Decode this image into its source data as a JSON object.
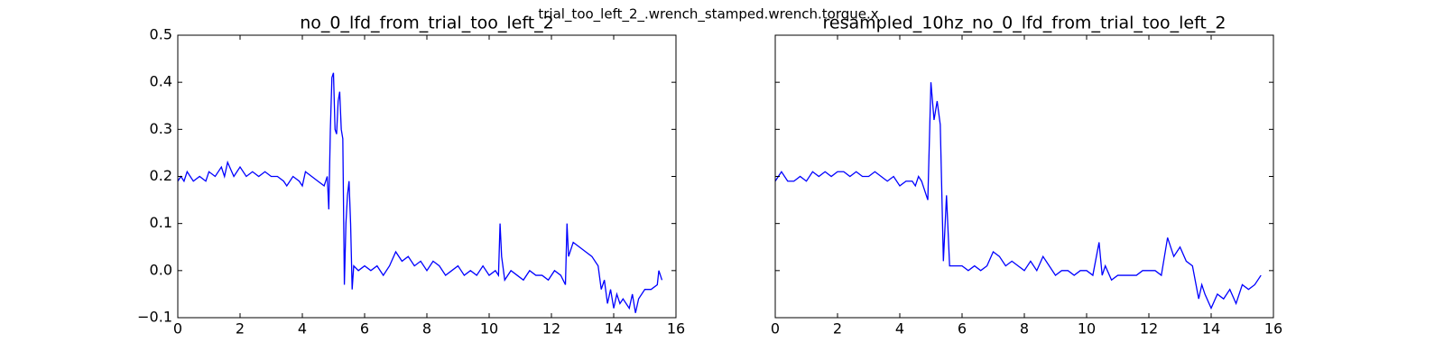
{
  "title": "trial_too_left_2_.wrench_stamped.wrench.torque.x",
  "chart_data": [
    {
      "type": "line",
      "title": "no_0_lfd_from_trial_too_left_2",
      "color": "#0000ff",
      "xlim": [
        0,
        16
      ],
      "xticks": [
        0,
        2,
        4,
        6,
        8,
        10,
        12,
        14,
        16
      ],
      "ylim": [
        -0.1,
        0.5
      ],
      "yticks": [
        {
          "value": -0.1,
          "label": "−0.1"
        },
        {
          "value": 0,
          "label": "0.0"
        },
        0.1,
        0.2,
        0.3,
        0.4,
        0.5
      ],
      "x": [
        0,
        0.1,
        0.2,
        0.3,
        0.5,
        0.7,
        0.9,
        1.0,
        1.2,
        1.4,
        1.5,
        1.6,
        1.8,
        2.0,
        2.2,
        2.4,
        2.6,
        2.8,
        3.0,
        3.2,
        3.4,
        3.5,
        3.7,
        3.9,
        4.0,
        4.1,
        4.3,
        4.5,
        4.7,
        4.8,
        4.85,
        4.9,
        4.95,
        5.0,
        5.05,
        5.1,
        5.15,
        5.2,
        5.25,
        5.3,
        5.35,
        5.4,
        5.45,
        5.5,
        5.55,
        5.6,
        5.65,
        5.8,
        6.0,
        6.2,
        6.4,
        6.6,
        6.8,
        7.0,
        7.2,
        7.4,
        7.6,
        7.8,
        8.0,
        8.2,
        8.4,
        8.6,
        8.8,
        9.0,
        9.2,
        9.4,
        9.6,
        9.8,
        10.0,
        10.2,
        10.3,
        10.35,
        10.4,
        10.5,
        10.7,
        10.9,
        11.1,
        11.3,
        11.5,
        11.7,
        11.9,
        12.1,
        12.3,
        12.45,
        12.5,
        12.55,
        12.7,
        12.9,
        13.1,
        13.3,
        13.5,
        13.6,
        13.7,
        13.8,
        13.9,
        14.0,
        14.1,
        14.2,
        14.3,
        14.5,
        14.6,
        14.7,
        14.8,
        15.0,
        15.2,
        15.4,
        15.45,
        15.5,
        15.55
      ],
      "values": [
        0.19,
        0.2,
        0.19,
        0.21,
        0.19,
        0.2,
        0.19,
        0.21,
        0.2,
        0.22,
        0.2,
        0.23,
        0.2,
        0.22,
        0.2,
        0.21,
        0.2,
        0.21,
        0.2,
        0.2,
        0.19,
        0.18,
        0.2,
        0.19,
        0.18,
        0.21,
        0.2,
        0.19,
        0.18,
        0.2,
        0.13,
        0.3,
        0.41,
        0.42,
        0.3,
        0.29,
        0.36,
        0.38,
        0.3,
        0.28,
        -0.03,
        0.1,
        0.16,
        0.19,
        0.1,
        -0.04,
        0.01,
        0.0,
        0.01,
        0.0,
        0.01,
        -0.01,
        0.01,
        0.04,
        0.02,
        0.03,
        0.01,
        0.02,
        0.0,
        0.02,
        0.01,
        -0.01,
        0.0,
        0.01,
        -0.01,
        0.0,
        -0.01,
        0.01,
        -0.01,
        0.0,
        -0.01,
        0.1,
        0.03,
        -0.02,
        0.0,
        -0.01,
        -0.02,
        0.0,
        -0.01,
        -0.01,
        -0.02,
        0.0,
        -0.01,
        -0.03,
        0.1,
        0.03,
        0.06,
        0.05,
        0.04,
        0.03,
        0.01,
        -0.04,
        -0.02,
        -0.07,
        -0.04,
        -0.08,
        -0.05,
        -0.07,
        -0.06,
        -0.08,
        -0.05,
        -0.09,
        -0.06,
        -0.04,
        -0.04,
        -0.03,
        0.0,
        -0.01,
        -0.02
      ]
    },
    {
      "type": "line",
      "title": "resampled_10hz_no_0_lfd_from_trial_too_left_2",
      "color": "#0000ff",
      "xlim": [
        0,
        16
      ],
      "xticks": [
        0,
        2,
        4,
        6,
        8,
        10,
        12,
        14,
        16
      ],
      "sharey": true,
      "x": [
        0,
        0.1,
        0.2,
        0.4,
        0.6,
        0.8,
        1.0,
        1.2,
        1.4,
        1.6,
        1.8,
        2.0,
        2.2,
        2.4,
        2.6,
        2.8,
        3.0,
        3.2,
        3.4,
        3.6,
        3.8,
        4.0,
        4.2,
        4.4,
        4.5,
        4.6,
        4.7,
        4.8,
        4.9,
        5.0,
        5.1,
        5.2,
        5.3,
        5.4,
        5.5,
        5.6,
        5.7,
        5.8,
        6.0,
        6.2,
        6.4,
        6.6,
        6.8,
        7.0,
        7.2,
        7.4,
        7.6,
        7.8,
        8.0,
        8.2,
        8.4,
        8.6,
        8.8,
        9.0,
        9.2,
        9.4,
        9.6,
        9.8,
        10.0,
        10.2,
        10.4,
        10.5,
        10.6,
        10.8,
        11.0,
        11.2,
        11.4,
        11.6,
        11.8,
        12.0,
        12.2,
        12.4,
        12.6,
        12.8,
        13.0,
        13.2,
        13.4,
        13.6,
        13.7,
        13.8,
        14.0,
        14.2,
        14.4,
        14.6,
        14.8,
        15.0,
        15.2,
        15.4,
        15.6
      ],
      "values": [
        0.19,
        0.2,
        0.21,
        0.19,
        0.19,
        0.2,
        0.19,
        0.21,
        0.2,
        0.21,
        0.2,
        0.21,
        0.21,
        0.2,
        0.21,
        0.2,
        0.2,
        0.21,
        0.2,
        0.19,
        0.2,
        0.18,
        0.19,
        0.19,
        0.18,
        0.2,
        0.19,
        0.17,
        0.15,
        0.4,
        0.32,
        0.36,
        0.31,
        0.02,
        0.16,
        0.01,
        0.01,
        0.01,
        0.01,
        0.0,
        0.01,
        0.0,
        0.01,
        0.04,
        0.03,
        0.01,
        0.02,
        0.01,
        0.0,
        0.02,
        0.0,
        0.03,
        0.01,
        -0.01,
        0.0,
        0.0,
        -0.01,
        0.0,
        0.0,
        -0.01,
        0.06,
        -0.01,
        0.01,
        -0.02,
        -0.01,
        -0.01,
        -0.01,
        -0.01,
        0.0,
        0.0,
        0.0,
        -0.01,
        0.07,
        0.03,
        0.05,
        0.02,
        0.01,
        -0.06,
        -0.03,
        -0.05,
        -0.08,
        -0.05,
        -0.06,
        -0.04,
        -0.07,
        -0.03,
        -0.04,
        -0.03,
        -0.01
      ]
    }
  ]
}
